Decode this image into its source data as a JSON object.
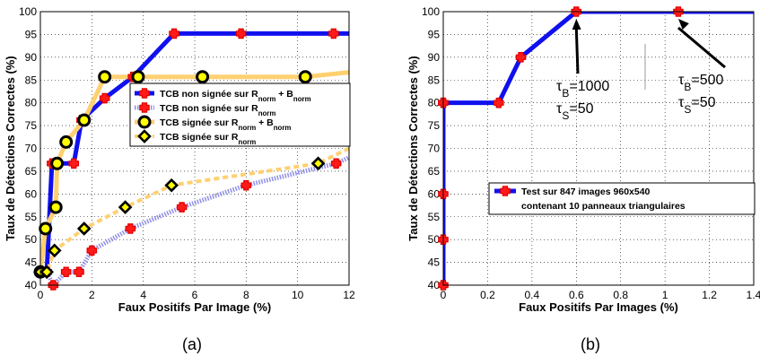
{
  "chart_data": [
    {
      "type": "line",
      "panel_label": "(a)",
      "xlabel": "Faux Positifs Par Image (%)",
      "ylabel": "Taux de Détections Correctes (%)",
      "xlim": [
        0,
        12
      ],
      "ylim": [
        40,
        100
      ],
      "xticks": [
        "0",
        "2",
        "4",
        "6",
        "8",
        "10",
        "12"
      ],
      "yticks": [
        "40",
        "45",
        "50",
        "55",
        "60",
        "65",
        "70",
        "75",
        "80",
        "85",
        "90",
        "95",
        "100"
      ],
      "grid": true,
      "legend_position": "right-middle",
      "series": [
        {
          "name": "TCB non signée sur R_norm + B_norm",
          "legend": {
            "text": "TCB non signée sur R",
            "sub1": "norm",
            "mid": " + B",
            "sub2": "norm"
          },
          "color": "#1010ee",
          "line": "solid",
          "marker": "red-cross",
          "x": [
            0.0,
            0.25,
            0.45,
            0.65,
            1.3,
            1.6,
            2.5,
            3.6,
            5.2,
            7.8,
            11.4,
            12.0
          ],
          "y": [
            42.9,
            42.9,
            66.7,
            66.7,
            66.7,
            76.2,
            81.0,
            85.7,
            95.2,
            95.2,
            95.2,
            95.2
          ]
        },
        {
          "name": "TCB non signée sur R_norm",
          "legend": {
            "text": "TCB non signée sur R",
            "sub1": "norm",
            "mid": "",
            "sub2": ""
          },
          "color": "#8f8fe6",
          "line": "dotted",
          "marker": "red-cross",
          "x": [
            0.0,
            0.25,
            0.5,
            1.0,
            1.5,
            2.0,
            3.5,
            5.5,
            8.0,
            11.5,
            12.0
          ],
          "y": [
            42.9,
            42.9,
            40.0,
            42.9,
            42.9,
            47.6,
            52.4,
            57.1,
            61.9,
            66.7,
            68.0
          ]
        },
        {
          "name": "TCB signée sur R_norm + B_norm",
          "legend": {
            "text": "TCB signée sur R",
            "sub1": "norm",
            "mid": " + B",
            "sub2": "norm"
          },
          "color": "#ffd070",
          "line": "solid",
          "marker": "yellow-black-circle",
          "x": [
            0.0,
            0.2,
            0.6,
            0.65,
            1.0,
            1.7,
            2.5,
            3.8,
            6.3,
            10.3,
            12.0
          ],
          "y": [
            42.9,
            52.4,
            57.1,
            66.7,
            71.4,
            76.2,
            85.7,
            85.7,
            85.7,
            85.7,
            86.7
          ]
        },
        {
          "name": "TCB signée sur R_norm",
          "legend": {
            "text": "TCB signée sur R",
            "sub1": "norm",
            "mid": "",
            "sub2": ""
          },
          "color": "#ffd070",
          "line": "dashed",
          "marker": "yellow-black-diamond",
          "x": [
            0.0,
            0.25,
            0.55,
            1.7,
            3.3,
            5.1,
            10.8,
            12.0
          ],
          "y": [
            42.9,
            42.9,
            47.6,
            52.4,
            57.1,
            61.9,
            66.7,
            70.0
          ]
        }
      ]
    },
    {
      "type": "line",
      "panel_label": "(b)",
      "xlabel": "Faux Positifs Par Images (%)",
      "ylabel": "Taux de Détections Correctes (%)",
      "xlim": [
        0,
        1.4
      ],
      "ylim": [
        40,
        100
      ],
      "xticks": [
        "0",
        "0.2",
        "0.4",
        "0.6",
        "0.8",
        "1",
        "1.2",
        "1.4"
      ],
      "yticks": [
        "40",
        "45",
        "50",
        "55",
        "60",
        "65",
        "70",
        "75",
        "80",
        "85",
        "90",
        "95",
        "100"
      ],
      "grid": true,
      "legend_position": "bottom-right",
      "series": [
        {
          "name": "Test sur 847 images 960x540 contenant 10 panneaux triangulaires",
          "legend": {
            "line1": "Test sur 847 images 960x540",
            "line2": "contenant 10 panneaux triangulaires"
          },
          "color": "#1010ee",
          "line": "solid",
          "marker": "red-cross",
          "x": [
            0.0,
            0.0,
            0.0,
            0.0,
            0.0,
            0.25,
            0.35,
            0.6,
            1.06,
            1.4
          ],
          "y": [
            40.0,
            50.0,
            60.0,
            80.0,
            80.0,
            80.0,
            90.0,
            100.0,
            100.0,
            100.0
          ]
        }
      ],
      "annotations": [
        {
          "tau": "τ",
          "sub1": "B",
          "value1": "=1000",
          "sub2": "S",
          "value2": "=50",
          "point_x": 0.6,
          "point_y": 100
        },
        {
          "tau": "τ",
          "sub1": "B",
          "value1": "=500",
          "sub2": "S",
          "value2": "=50",
          "point_x": 1.06,
          "point_y": 100
        }
      ]
    }
  ]
}
